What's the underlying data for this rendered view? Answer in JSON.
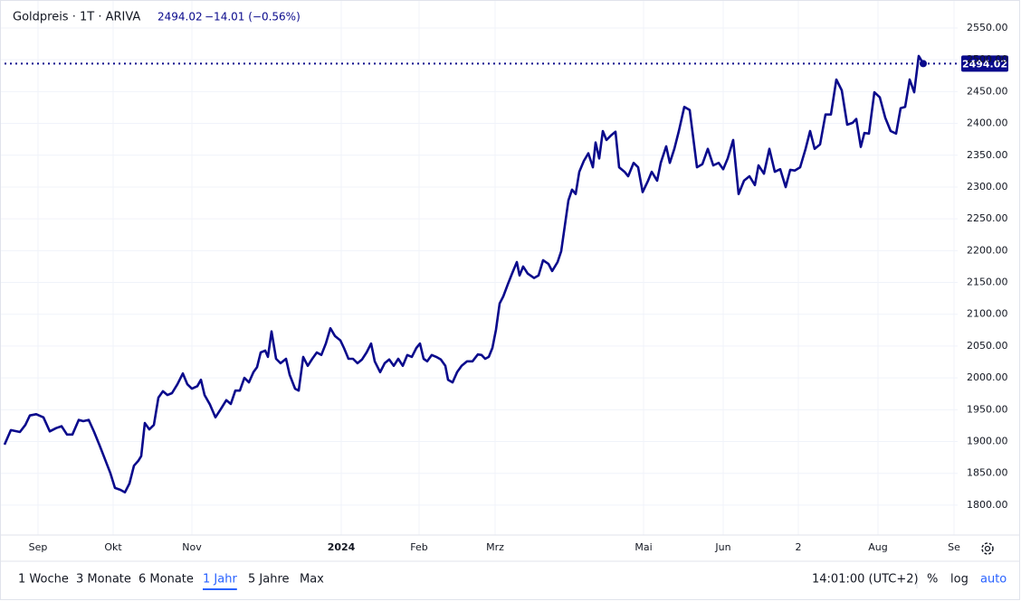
{
  "chart_data": {
    "type": "line",
    "title": "Goldpreis · 1T · ARIVA",
    "change": "−14.01 (−0.56%)",
    "color": "#0a0a8c",
    "log_scale": false,
    "grid": true,
    "xlim": [
      0,
      1053
    ],
    "ylim": [
      1753,
      2594
    ],
    "xticks": [
      {
        "value": 37,
        "label": "Sep"
      },
      {
        "value": 120,
        "label": "Okt"
      },
      {
        "value": 207,
        "label": "Nov"
      },
      {
        "value": 372,
        "label": "2024"
      },
      {
        "value": 458,
        "label": "Feb"
      },
      {
        "value": 542,
        "label": "Mrz"
      },
      {
        "value": 706,
        "label": "Mai"
      },
      {
        "value": 794,
        "label": "Jun"
      },
      {
        "value": 877,
        "label": "2"
      },
      {
        "value": 965,
        "label": "Aug"
      },
      {
        "value": 1049,
        "label": "Se"
      }
    ],
    "yticks": [
      {
        "value": 1800,
        "label": "1800.00"
      },
      {
        "value": 1850,
        "label": "1850.00"
      },
      {
        "value": 1900,
        "label": "1900.00"
      },
      {
        "value": 1950,
        "label": "1950.00"
      },
      {
        "value": 2000,
        "label": "2000.00"
      },
      {
        "value": 2050,
        "label": "2050.00"
      },
      {
        "value": 2100,
        "label": "2100.00"
      },
      {
        "value": 2150,
        "label": "2150.00"
      },
      {
        "value": 2200,
        "label": "2200.00"
      },
      {
        "value": 2250,
        "label": "2250.00"
      },
      {
        "value": 2300,
        "label": "2300.00"
      },
      {
        "value": 2350,
        "label": "2350.00"
      },
      {
        "value": 2400,
        "label": "2400.00"
      },
      {
        "value": 2450,
        "label": "2450.00"
      },
      {
        "value": 2500,
        "label": "2500.00"
      },
      {
        "value": 2550,
        "label": "2550.00"
      }
    ],
    "x": [
      0,
      7,
      17,
      23,
      28,
      35,
      43,
      50,
      57,
      63,
      69,
      75,
      82,
      87,
      93,
      99,
      105,
      111,
      117,
      122,
      128,
      133,
      138,
      143,
      148,
      151,
      155,
      160,
      165,
      170,
      175,
      180,
      185,
      191,
      197,
      202,
      207,
      213,
      217,
      221,
      227,
      233,
      239,
      245,
      250,
      255,
      260,
      265,
      270,
      275,
      279,
      283,
      288,
      291,
      295,
      300,
      305,
      311,
      315,
      321,
      325,
      330,
      335,
      340,
      345,
      350,
      355,
      360,
      365,
      371,
      375,
      380,
      385,
      390,
      395,
      400,
      405,
      409,
      415,
      420,
      425,
      430,
      435,
      440,
      445,
      450,
      455,
      459,
      463,
      467,
      472,
      477,
      482,
      487,
      490,
      495,
      500,
      505,
      511,
      517,
      523,
      527,
      531,
      535,
      539,
      543,
      547,
      551,
      556,
      561,
      566,
      569,
      573,
      578,
      585,
      590,
      595,
      601,
      605,
      611,
      615,
      619,
      623,
      627,
      631,
      635,
      640,
      645,
      650,
      653,
      657,
      661,
      665,
      670,
      675,
      679,
      685,
      689,
      695,
      700,
      705,
      711,
      715,
      721,
      725,
      731,
      735,
      740,
      745,
      751,
      757,
      765,
      771,
      777,
      783,
      789,
      794,
      799,
      805,
      811,
      817,
      823,
      829,
      833,
      839,
      845,
      851,
      857,
      863,
      868,
      873,
      879,
      885,
      890,
      895,
      901,
      907,
      913,
      919,
      925,
      931,
      937,
      941,
      946,
      950,
      955,
      961,
      967,
      973,
      979,
      985,
      990,
      995,
      1000,
      1005,
      1010,
      1015
    ],
    "values": [
      1895,
      1918,
      1915,
      1926,
      1941,
      1943,
      1938,
      1916,
      1921,
      1924,
      1911,
      1911,
      1934,
      1932,
      1934,
      1915,
      1894,
      1872,
      1850,
      1827,
      1824,
      1820,
      1834,
      1862,
      1870,
      1877,
      1929,
      1919,
      1926,
      1969,
      1979,
      1973,
      1976,
      1990,
      2007,
      1990,
      1983,
      1987,
      1997,
      1973,
      1958,
      1938,
      1951,
      1965,
      1959,
      1980,
      1980,
      2000,
      1993,
      2009,
      2017,
      2040,
      2043,
      2033,
      2073,
      2030,
      2023,
      2030,
      2005,
      1983,
      1980,
      2033,
      2019,
      2030,
      2040,
      2036,
      2054,
      2078,
      2066,
      2059,
      2047,
      2030,
      2030,
      2023,
      2029,
      2040,
      2054,
      2026,
      2009,
      2023,
      2029,
      2019,
      2030,
      2019,
      2036,
      2033,
      2047,
      2054,
      2030,
      2026,
      2036,
      2033,
      2029,
      2019,
      1997,
      1993,
      2009,
      2019,
      2026,
      2026,
      2037,
      2036,
      2030,
      2033,
      2047,
      2076,
      2117,
      2128,
      2147,
      2165,
      2182,
      2161,
      2175,
      2164,
      2157,
      2161,
      2185,
      2179,
      2168,
      2182,
      2199,
      2239,
      2279,
      2296,
      2289,
      2324,
      2341,
      2353,
      2331,
      2370,
      2345,
      2388,
      2374,
      2381,
      2387,
      2331,
      2324,
      2317,
      2338,
      2331,
      2292,
      2310,
      2324,
      2310,
      2338,
      2364,
      2338,
      2360,
      2388,
      2426,
      2421,
      2331,
      2336,
      2360,
      2334,
      2338,
      2328,
      2345,
      2374,
      2289,
      2310,
      2317,
      2303,
      2334,
      2321,
      2360,
      2324,
      2328,
      2300,
      2327,
      2326,
      2331,
      2360,
      2388,
      2360,
      2367,
      2414,
      2414,
      2469,
      2452,
      2398,
      2401,
      2407,
      2363,
      2385,
      2384,
      2449,
      2441,
      2409,
      2388,
      2384,
      2424,
      2426,
      2469,
      2449,
      2506,
      2494.02
    ]
  },
  "toolbar": {
    "ranges": [
      "1 Woche",
      "3 Monate",
      "6 Monate",
      "1 Jahr",
      "5 Jahre",
      "Max"
    ],
    "active_range": 3,
    "time": "14:01:00 (UTC+2)",
    "percent": "%",
    "log": "log",
    "auto": "auto"
  }
}
